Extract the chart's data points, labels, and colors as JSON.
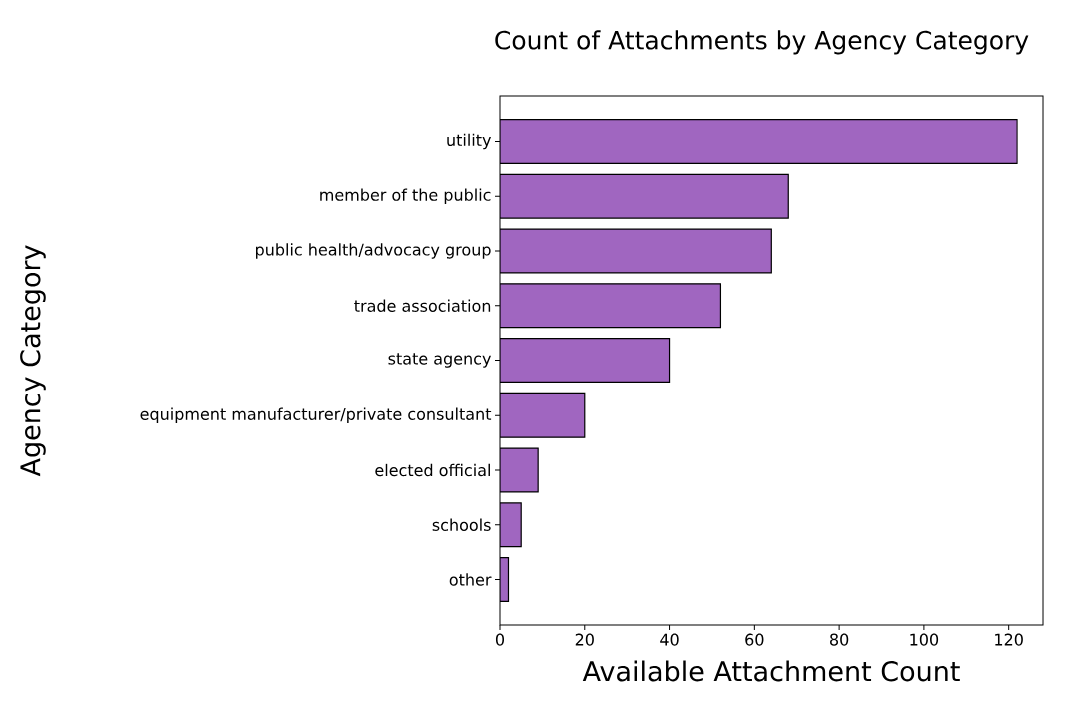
{
  "chart_data": {
    "type": "bar",
    "orientation": "horizontal",
    "title": "Count of Attachments by Agency Category",
    "xlabel": "Available Attachment Count",
    "ylabel": "Agency Category",
    "categories": [
      "utility",
      "member of the public",
      "public health/advocacy group",
      "trade association",
      "state agency",
      "equipment manufacturer/private consultant",
      "elected official",
      "schools",
      "other"
    ],
    "values": [
      122,
      68,
      64,
      52,
      40,
      20,
      9,
      5,
      2
    ],
    "color": "#a066c0",
    "xlim": [
      0,
      128.1
    ],
    "xticks": [
      0,
      20,
      40,
      60,
      80,
      100,
      120
    ],
    "grid": false
  }
}
